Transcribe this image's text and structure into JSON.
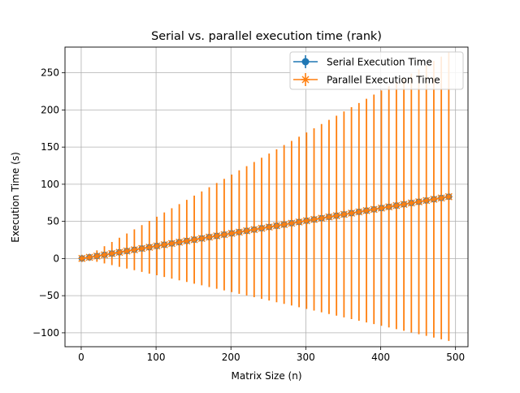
{
  "chart_data": {
    "type": "line",
    "title": "Serial vs. parallel execution time (rank)",
    "xlabel": "Matrix Size (n)",
    "ylabel": "Execution Time (s)",
    "xlim": [
      -21.65,
      516.65
    ],
    "ylim": [
      -118.7,
      284.6
    ],
    "xticks": [
      0,
      100,
      200,
      300,
      400,
      500
    ],
    "xtick_labels": [
      "0",
      "100",
      "200",
      "300",
      "400",
      "500"
    ],
    "yticks": [
      -100,
      -50,
      0,
      50,
      100,
      150,
      200,
      250
    ],
    "ytick_labels": [
      "−100",
      "−50",
      "0",
      "50",
      "100",
      "150",
      "200",
      "250"
    ],
    "grid": true,
    "legend_position": "top-right",
    "x": [
      1,
      11,
      21,
      31,
      41,
      51,
      61,
      71,
      81,
      91,
      101,
      111,
      121,
      131,
      141,
      151,
      161,
      171,
      181,
      191,
      201,
      211,
      221,
      231,
      241,
      251,
      261,
      271,
      281,
      291,
      301,
      311,
      321,
      331,
      341,
      351,
      361,
      371,
      381,
      391,
      401,
      411,
      421,
      431,
      441,
      451,
      461,
      471,
      481,
      491
    ],
    "series": [
      {
        "name": "Serial Execution Time",
        "marker": "circle",
        "color": "#1f77b4",
        "values": [
          0.1,
          1.6,
          3.3,
          5.0,
          6.7,
          8.4,
          10.1,
          11.8,
          13.5,
          15.2,
          16.9,
          18.6,
          20.3,
          22.0,
          23.7,
          25.4,
          27.1,
          28.8,
          30.5,
          32.2,
          33.9,
          35.6,
          37.3,
          39.0,
          40.7,
          42.4,
          44.1,
          45.8,
          47.5,
          49.2,
          50.9,
          52.6,
          54.3,
          56.0,
          57.7,
          59.4,
          61.1,
          62.8,
          64.5,
          66.2,
          67.9,
          69.6,
          71.3,
          73.0,
          74.7,
          76.4,
          78.1,
          79.8,
          81.5,
          83.2
        ],
        "errors": [
          0.3,
          0.5,
          0.5,
          0.6,
          0.6,
          0.7,
          0.7,
          0.8,
          0.8,
          0.9,
          0.9,
          1.0,
          1.0,
          1.1,
          1.1,
          1.2,
          1.2,
          1.3,
          1.3,
          1.4,
          1.4,
          1.5,
          1.5,
          1.6,
          1.6,
          1.7,
          1.7,
          1.8,
          1.8,
          1.9,
          1.9,
          2.0,
          2.0,
          2.1,
          2.1,
          2.2,
          2.2,
          2.3,
          2.3,
          2.4,
          2.4,
          2.5,
          2.5,
          2.6,
          2.6,
          2.7,
          2.7,
          2.8,
          2.8,
          2.9
        ]
      },
      {
        "name": "Parallel Execution Time",
        "marker": "x",
        "color": "#ff7f0e",
        "values": [
          0.1,
          1.6,
          3.3,
          5.0,
          6.7,
          8.4,
          10.1,
          11.8,
          13.5,
          15.2,
          16.9,
          18.6,
          20.3,
          22.0,
          23.7,
          25.4,
          27.1,
          28.8,
          30.5,
          32.2,
          33.9,
          35.6,
          37.3,
          39.0,
          40.7,
          42.4,
          44.1,
          45.8,
          47.5,
          49.2,
          50.9,
          52.6,
          54.3,
          56.0,
          57.7,
          59.4,
          61.1,
          62.8,
          64.5,
          66.2,
          67.9,
          69.6,
          71.3,
          73.0,
          74.7,
          76.4,
          78.1,
          79.8,
          81.5,
          83.2
        ],
        "errors": [
          0.5,
          3.6,
          7.7,
          11.6,
          15.6,
          19.6,
          23.6,
          27.5,
          31.5,
          35.5,
          39.4,
          43.4,
          47.4,
          51.3,
          55.3,
          59.3,
          63.2,
          67.2,
          71.2,
          75.1,
          79.1,
          83.1,
          87.0,
          91.0,
          95.0,
          98.9,
          102.9,
          106.9,
          110.8,
          114.8,
          118.8,
          122.7,
          126.7,
          130.7,
          134.6,
          138.6,
          142.6,
          146.5,
          150.5,
          154.5,
          158.4,
          162.4,
          166.4,
          170.3,
          174.3,
          178.3,
          182.2,
          186.2,
          190.2,
          194.1
        ]
      }
    ]
  }
}
